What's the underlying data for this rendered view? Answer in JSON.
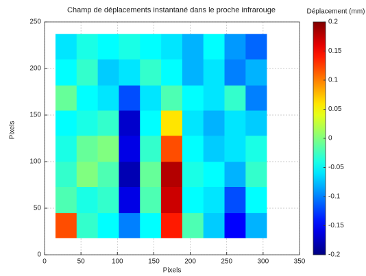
{
  "chart_data": {
    "type": "heatmap",
    "title": "Champ de déplacements instantané dans le proche infrarouge",
    "x_label": "Pixels",
    "y_label": "Pixels",
    "colorbar_label": "Déplacement (mm)",
    "xlim": [
      0,
      350
    ],
    "xticks": [
      0,
      50,
      100,
      150,
      200,
      250,
      300,
      350
    ],
    "ylim": [
      0,
      250
    ],
    "yticks": [
      0,
      50,
      100,
      150,
      200,
      250
    ],
    "clim": [
      -0.2,
      0.2
    ],
    "cticks": [
      -0.2,
      -0.15,
      -0.1,
      -0.05,
      0,
      0.05,
      0.1,
      0.15,
      0.2
    ],
    "colormap": "jet",
    "grid": true,
    "xbins": [
      15,
      44,
      73,
      102,
      131,
      160,
      189,
      218,
      247,
      276,
      305
    ],
    "ybins": [
      18,
      45,
      73,
      100,
      128,
      155,
      182,
      210,
      237
    ],
    "z": [
      [
        0.12,
        -0.03,
        -0.05,
        -0.1,
        -0.05,
        0.14,
        -0.02,
        -0.07,
        -0.15,
        -0.08
      ],
      [
        -0.02,
        -0.04,
        -0.03,
        -0.16,
        -0.02,
        0.17,
        -0.05,
        -0.06,
        -0.12,
        -0.05
      ],
      [
        -0.03,
        0.0,
        -0.02,
        -0.18,
        -0.01,
        0.18,
        -0.04,
        -0.05,
        -0.08,
        -0.03
      ],
      [
        -0.04,
        -0.01,
        0.0,
        -0.16,
        -0.03,
        0.12,
        -0.05,
        -0.07,
        -0.06,
        -0.04
      ],
      [
        -0.05,
        -0.04,
        -0.03,
        -0.17,
        -0.05,
        0.06,
        -0.06,
        -0.08,
        -0.06,
        -0.07
      ],
      [
        -0.01,
        -0.05,
        -0.06,
        -0.12,
        -0.06,
        -0.02,
        -0.05,
        -0.06,
        -0.03,
        -0.1
      ],
      [
        -0.05,
        -0.03,
        -0.07,
        -0.06,
        -0.03,
        -0.05,
        -0.08,
        -0.06,
        -0.1,
        -0.08
      ],
      [
        -0.06,
        -0.04,
        -0.05,
        -0.04,
        -0.05,
        -0.06,
        -0.08,
        -0.05,
        -0.09,
        -0.11
      ]
    ]
  }
}
